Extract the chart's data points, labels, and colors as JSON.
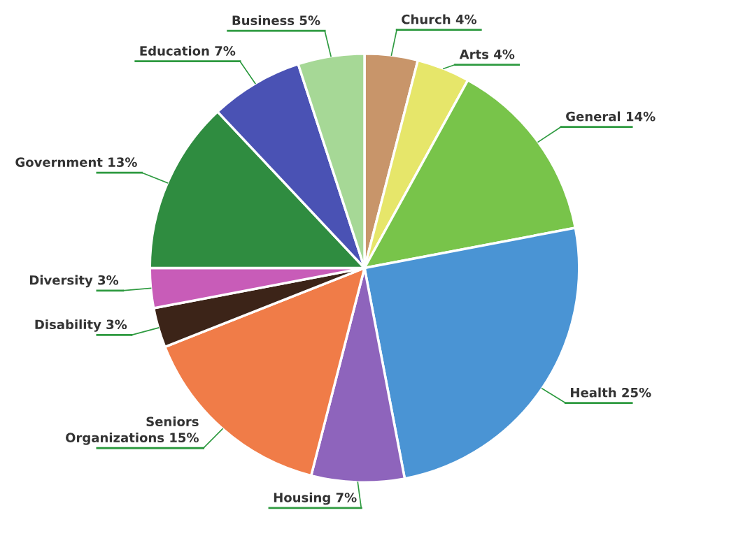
{
  "chart_data": {
    "type": "pie",
    "categories": [
      "Church",
      "Arts",
      "General",
      "Health",
      "Housing",
      "Seniors\nOrganizations",
      "Disability",
      "Diversity",
      "Government",
      "Education",
      "Business"
    ],
    "values": [
      4,
      4,
      14,
      25,
      7,
      15,
      3,
      3,
      13,
      7,
      5
    ],
    "value_labels": [
      "4%",
      "4%",
      "14%",
      "25%",
      "7%",
      "15%",
      "3%",
      "3%",
      "13%",
      "7%",
      "5%"
    ],
    "colors": [
      "#c8956a",
      "#e6e66a",
      "#78c44a",
      "#4a94d4",
      "#8e64bc",
      "#f07c48",
      "#3c2418",
      "#c85cb8",
      "#2f8c40",
      "#4a52b4",
      "#a6d896"
    ]
  }
}
